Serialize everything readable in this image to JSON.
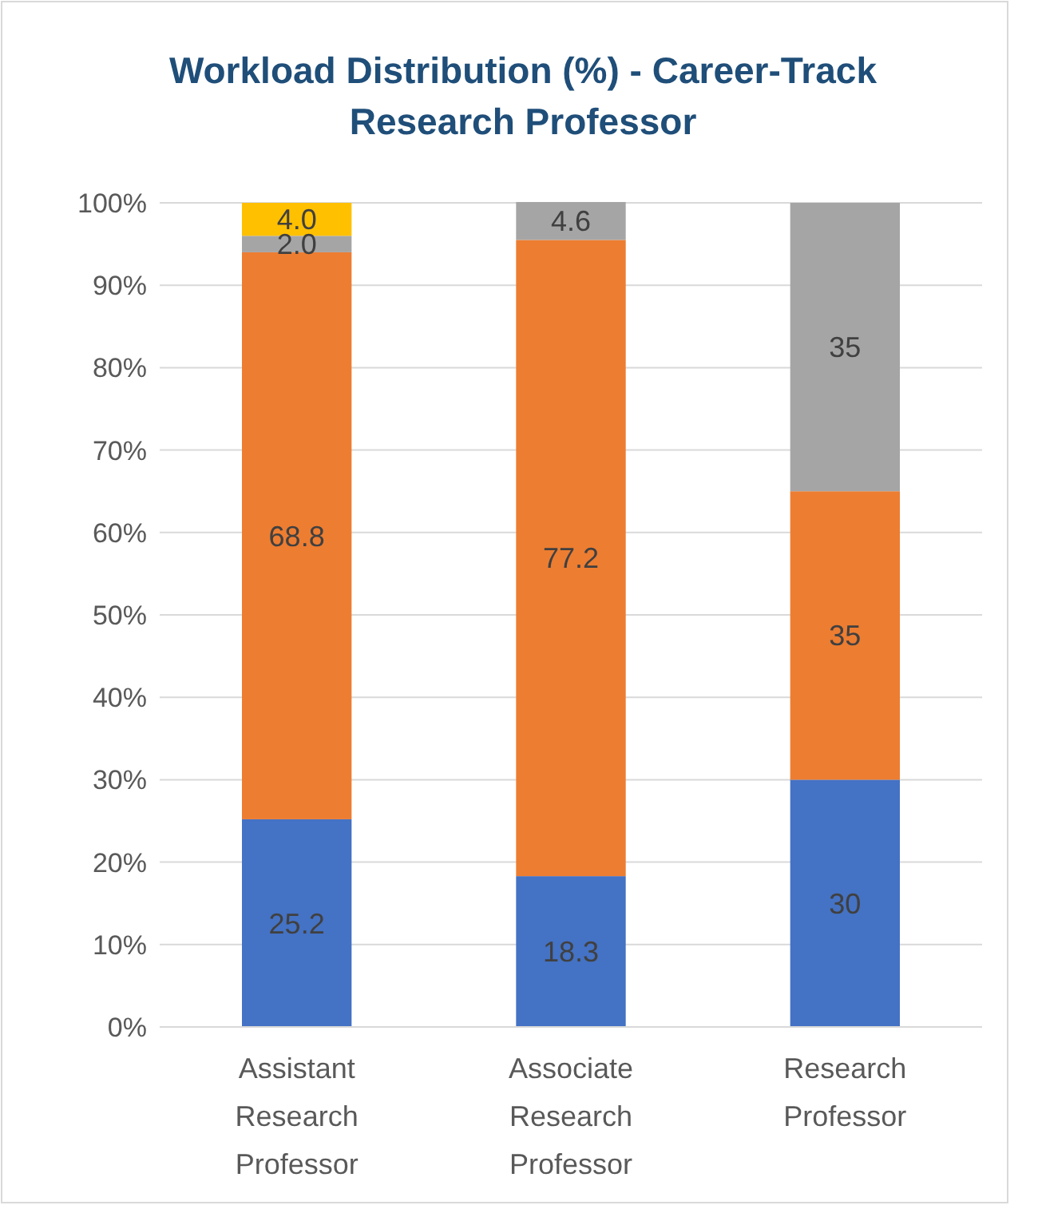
{
  "chart_data": {
    "type": "bar",
    "title": "Workload Distribution (%) - Career-Track Research Professor",
    "categories": [
      "Assistant Research Professor",
      "Associate Research Professor",
      "Research Professor"
    ],
    "stacked": true,
    "ylim": [
      0,
      100
    ],
    "yticks": [
      {
        "value": 0,
        "label": "0%"
      },
      {
        "value": 10,
        "label": "10%"
      },
      {
        "value": 20,
        "label": "20%"
      },
      {
        "value": 30,
        "label": "30%"
      },
      {
        "value": 40,
        "label": "40%"
      },
      {
        "value": 50,
        "label": "50%"
      },
      {
        "value": 60,
        "label": "60%"
      },
      {
        "value": 70,
        "label": "70%"
      },
      {
        "value": 80,
        "label": "80%"
      },
      {
        "value": 90,
        "label": "90%"
      },
      {
        "value": 100,
        "label": "100%"
      }
    ],
    "grid": "y",
    "series": [
      {
        "color": "#4472c4",
        "values": [
          25.2,
          18.3,
          30
        ],
        "value_labels": [
          "25.2",
          "18.3",
          "30"
        ]
      },
      {
        "color": "#ed7d31",
        "values": [
          68.8,
          77.2,
          35
        ],
        "value_labels": [
          "68.8",
          "77.2",
          "35"
        ]
      },
      {
        "color": "#a5a5a5",
        "values": [
          2.0,
          4.6,
          35
        ],
        "value_labels": [
          "2.0",
          "4.6",
          "35"
        ]
      },
      {
        "color": "#ffc000",
        "values": [
          4.0,
          null,
          null
        ],
        "value_labels": [
          "4.0",
          null,
          null
        ]
      }
    ]
  }
}
